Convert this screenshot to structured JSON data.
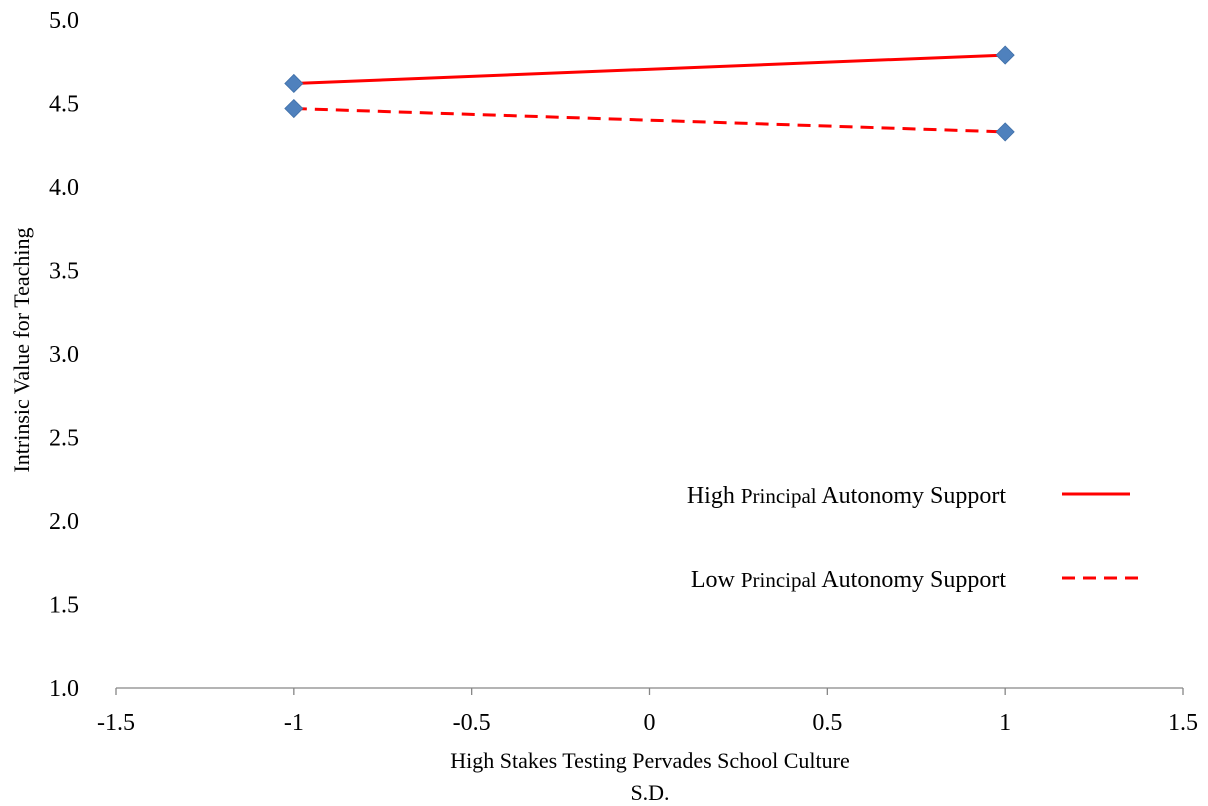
{
  "chart_data": {
    "type": "line",
    "xlabel": "High Stakes Testing Pervades School Culture",
    "xlabel_unit": "S.D.",
    "ylabel": "Intrinsic Value for Teaching",
    "xlim": [
      -1.5,
      1.5
    ],
    "ylim": [
      1.0,
      5.0
    ],
    "x_ticks": [
      -1.5,
      -1,
      -0.5,
      0,
      0.5,
      1,
      1.5
    ],
    "x_tick_labels": [
      "-1.5",
      "-1",
      "-0.5",
      "0",
      "0.5",
      "1",
      "1.5"
    ],
    "y_ticks": [
      1.0,
      1.5,
      2.0,
      2.5,
      3.0,
      3.5,
      4.0,
      4.5,
      5.0
    ],
    "y_tick_labels": [
      "1.0",
      "1.5",
      "2.0",
      "2.5",
      "3.0",
      "3.5",
      "4.0",
      "4.5",
      "5.0"
    ],
    "grid": false,
    "legend_position": "center-right",
    "marker": "diamond",
    "marker_color": "#4f81bd",
    "series": [
      {
        "name": "High Principal Autonomy Support",
        "name_parts": [
          "High ",
          "Principal",
          " Autonomy Support"
        ],
        "color": "#ff0000",
        "dash": "solid",
        "x": [
          -1,
          1
        ],
        "y": [
          4.62,
          4.79
        ]
      },
      {
        "name": "Low Principal Autonomy Support",
        "name_parts": [
          "Low ",
          "Principal",
          " Autonomy Support"
        ],
        "color": "#ff0000",
        "dash": "dashed",
        "x": [
          -1,
          1
        ],
        "y": [
          4.47,
          4.33
        ]
      }
    ]
  }
}
